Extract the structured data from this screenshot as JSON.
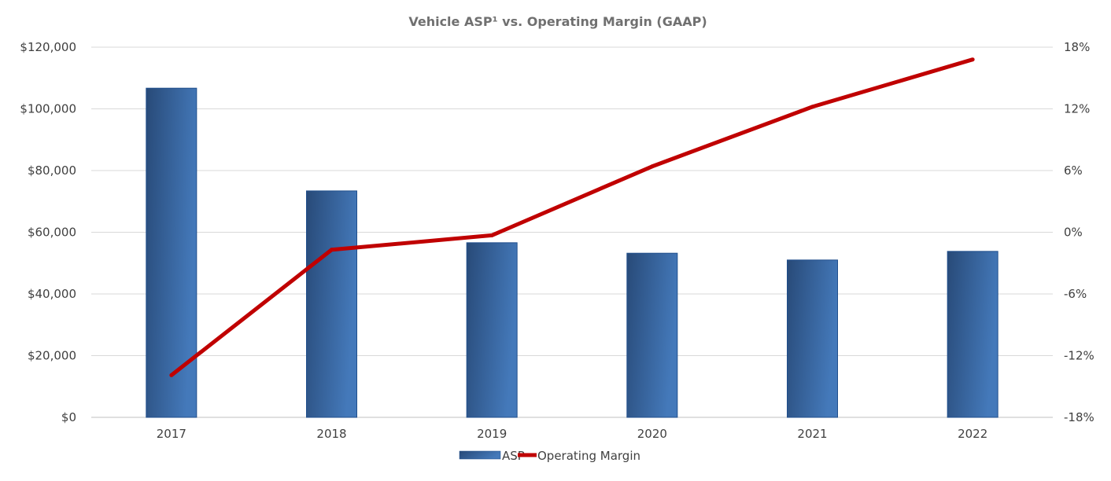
{
  "chart_data": {
    "type": "bar+line",
    "title": "Vehicle ASP¹ vs. Operating Margin (GAAP)",
    "categories": [
      "2017",
      "2018",
      "2019",
      "2020",
      "2021",
      "2022"
    ],
    "series": [
      {
        "name": "ASP",
        "type": "bar",
        "axis": "left",
        "color": "#3a68a3",
        "values": [
          106700,
          73400,
          56600,
          53200,
          51000,
          53800
        ]
      },
      {
        "name": "Operating Margin",
        "type": "line",
        "axis": "right",
        "color": "#c00000",
        "values": [
          -13.9,
          -1.7,
          -0.3,
          6.4,
          12.2,
          16.8
        ]
      }
    ],
    "y_left": {
      "ylim": [
        0,
        120000
      ],
      "ticks": [
        "$0",
        "$20,000",
        "$40,000",
        "$60,000",
        "$80,000",
        "$100,000",
        "$120,000"
      ]
    },
    "y_right": {
      "ylim": [
        -18,
        18
      ],
      "ticks": [
        "-18%",
        "-12%",
        "-6%",
        "0%",
        "6%",
        "12%",
        "18%"
      ]
    },
    "grid": true,
    "legend": "bottom-center"
  }
}
